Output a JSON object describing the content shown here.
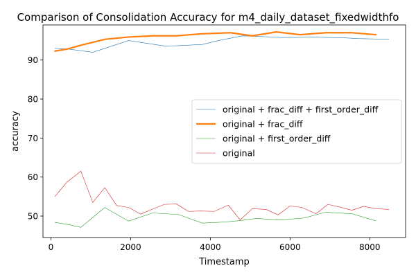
{
  "chart_data": {
    "type": "line",
    "title": "Comparison of Consolidation Accuracy for m4_daily_dataset_fixedwidthfo",
    "xlabel": "Timestamp",
    "ylabel": "accuracy",
    "xlim": [
      -200,
      8900
    ],
    "ylim": [
      44.5,
      99.0
    ],
    "xticks": [
      0,
      2000,
      4000,
      6000,
      8000
    ],
    "yticks": [
      50,
      60,
      70,
      80,
      90
    ],
    "grid": false,
    "legend": "center-right",
    "series": [
      {
        "name": "original + frac_diff + first_order_diff",
        "color": "#1f77b4",
        "width": 0.6,
        "x": [
          100,
          450,
          1050,
          1950,
          2850,
          3250,
          3800,
          4200,
          4800,
          5350,
          5750,
          6150,
          6600,
          6900,
          7350,
          7700,
          8150,
          8480
        ],
        "y": [
          93.0,
          92.8,
          92.0,
          95.0,
          93.6,
          93.7,
          94.0,
          95.0,
          96.2,
          96.0,
          95.8,
          95.8,
          95.9,
          95.8,
          95.7,
          95.5,
          95.4,
          95.4
        ]
      },
      {
        "name": "original + frac_diff",
        "color": "#ff7f0e",
        "width": 2.2,
        "x": [
          100,
          400,
          750,
          1350,
          1950,
          2550,
          3150,
          3750,
          4500,
          5050,
          5650,
          6250,
          6900,
          7550,
          8150
        ],
        "y": [
          92.3,
          92.8,
          93.8,
          95.3,
          95.9,
          96.2,
          96.2,
          96.7,
          97.0,
          96.2,
          97.2,
          96.5,
          97.0,
          97.0,
          96.5
        ]
      },
      {
        "name": "original + first_order_diff",
        "color": "#2ca02c",
        "width": 0.6,
        "x": [
          100,
          450,
          750,
          1350,
          1950,
          2550,
          3200,
          3800,
          4400,
          4800,
          5150,
          5750,
          6350,
          6900,
          7550,
          8150
        ],
        "y": [
          48.4,
          47.8,
          47.1,
          52.2,
          48.7,
          50.8,
          50.4,
          48.2,
          48.5,
          48.9,
          49.4,
          49.0,
          49.5,
          51.0,
          50.6,
          48.8
        ]
      },
      {
        "name": "original",
        "color": "#d62728",
        "width": 0.6,
        "x": [
          100,
          400,
          750,
          1050,
          1350,
          1650,
          1950,
          2250,
          2550,
          2850,
          3150,
          3450,
          3750,
          4100,
          4450,
          4750,
          5050,
          5400,
          5700,
          6000,
          6300,
          6650,
          6950,
          7250,
          7550,
          7850,
          8150,
          8480
        ],
        "y": [
          55.0,
          58.7,
          61.5,
          53.5,
          57.3,
          52.7,
          52.2,
          50.5,
          51.8,
          53.0,
          53.1,
          51.2,
          51.3,
          51.2,
          52.8,
          49.0,
          51.9,
          51.7,
          50.3,
          52.6,
          52.2,
          50.6,
          53.0,
          52.3,
          51.5,
          52.5,
          51.9,
          51.7
        ]
      }
    ]
  }
}
